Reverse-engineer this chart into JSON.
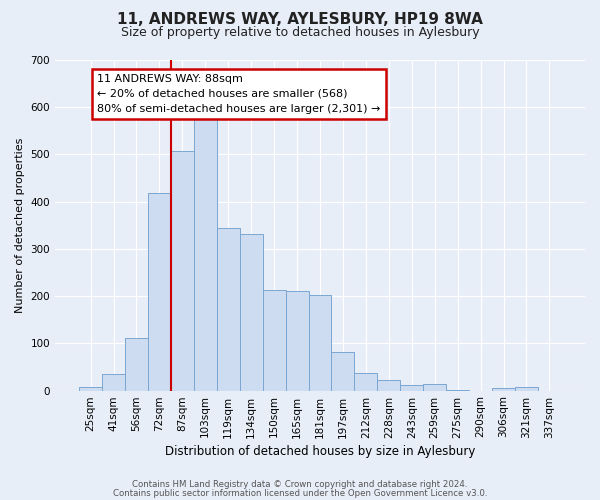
{
  "title": "11, ANDREWS WAY, AYLESBURY, HP19 8WA",
  "subtitle": "Size of property relative to detached houses in Aylesbury",
  "xlabel": "Distribution of detached houses by size in Aylesbury",
  "ylabel": "Number of detached properties",
  "bar_labels": [
    "25sqm",
    "41sqm",
    "56sqm",
    "72sqm",
    "87sqm",
    "103sqm",
    "119sqm",
    "134sqm",
    "150sqm",
    "165sqm",
    "181sqm",
    "197sqm",
    "212sqm",
    "228sqm",
    "243sqm",
    "259sqm",
    "275sqm",
    "290sqm",
    "306sqm",
    "321sqm",
    "337sqm"
  ],
  "bar_values": [
    8,
    35,
    112,
    418,
    508,
    575,
    345,
    332,
    212,
    210,
    202,
    82,
    37,
    22,
    12,
    14,
    2,
    0,
    5,
    8,
    0
  ],
  "bar_color": "#cddcf0",
  "bar_edge_color": "#7ba7d4",
  "ylim": [
    0,
    700
  ],
  "yticks": [
    0,
    100,
    200,
    300,
    400,
    500,
    600,
    700
  ],
  "vline_color": "#cc0000",
  "annotation_title": "11 ANDREWS WAY: 88sqm",
  "annotation_line1": "← 20% of detached houses are smaller (568)",
  "annotation_line2": "80% of semi-detached houses are larger (2,301) →",
  "annotation_box_color": "#cc0000",
  "footer1": "Contains HM Land Registry data © Crown copyright and database right 2024.",
  "footer2": "Contains public sector information licensed under the Open Government Licence v3.0.",
  "background_color": "#e8eef8",
  "plot_background": "#e8eef8",
  "grid_color": "#ffffff",
  "title_fontsize": 11,
  "subtitle_fontsize": 9,
  "ylabel_fontsize": 8,
  "xlabel_fontsize": 8.5,
  "tick_fontsize": 7.5,
  "annotation_fontsize": 8
}
